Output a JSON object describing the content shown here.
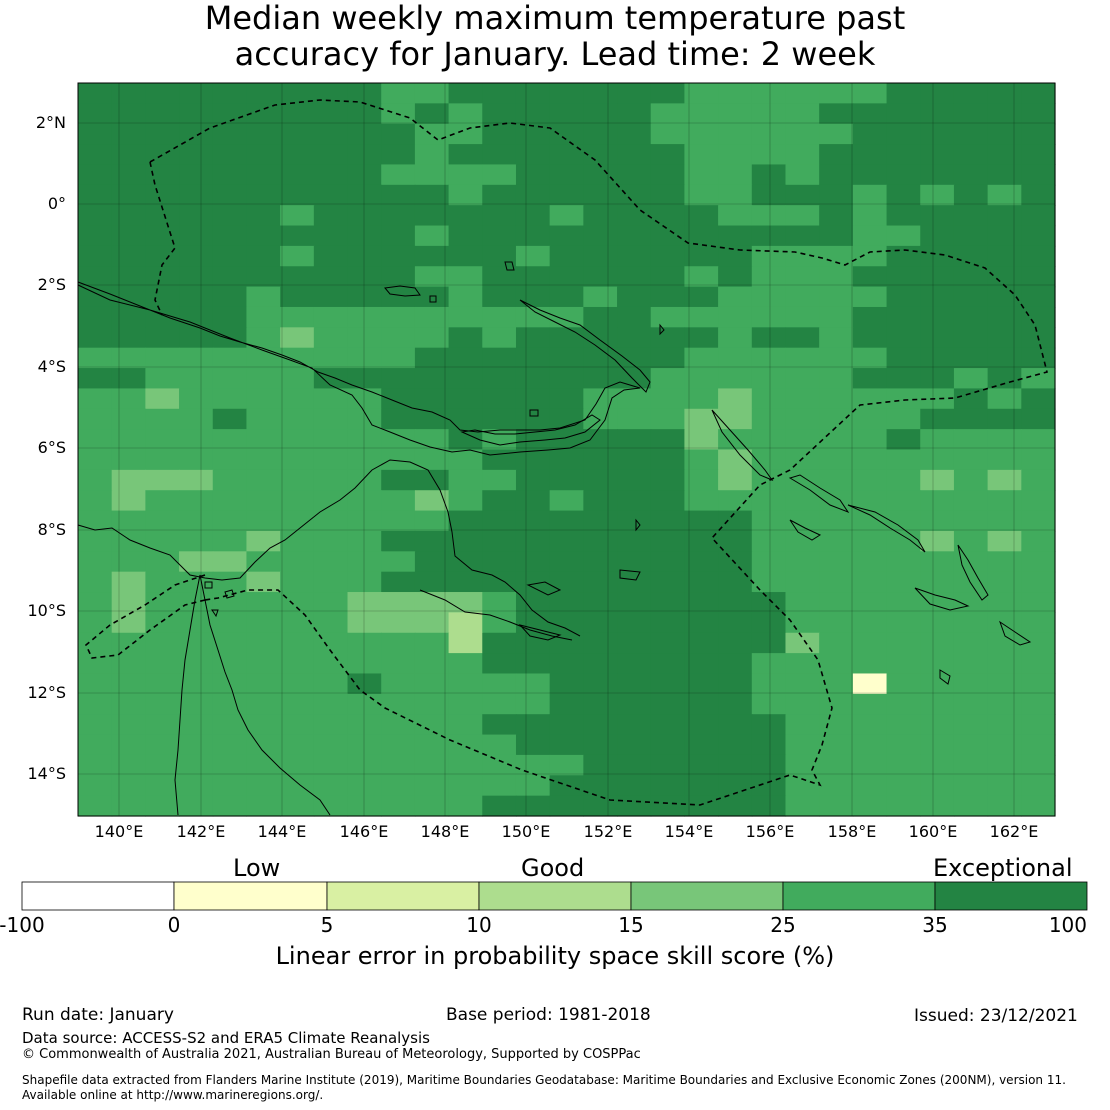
{
  "title": {
    "line1": "Median weekly maximum temperature past",
    "line2": "accuracy for January. Lead time: 2 week"
  },
  "map": {
    "lat_labels": [
      "2°N",
      "0°",
      "2°S",
      "4°S",
      "6°S",
      "8°S",
      "10°S",
      "12°S",
      "14°S"
    ],
    "lon_labels": [
      "140°E",
      "142°E",
      "144°E",
      "146°E",
      "148°E",
      "150°E",
      "152°E",
      "154°E",
      "156°E",
      "158°E",
      "160°E",
      "162°E"
    ],
    "colors": {
      "c0": "#ffffcc",
      "c5": "#d9f0a3",
      "c10": "#addd8e",
      "c15": "#78c679",
      "c25": "#41ab5d",
      "c35": "#238443"
    }
  },
  "legend": {
    "categories": [
      "Low",
      "Good",
      "Exceptional"
    ],
    "ticks": [
      "-100",
      "0",
      "5",
      "10",
      "15",
      "25",
      "35",
      "100"
    ],
    "colors": [
      "#ffffff",
      "#ffffcc",
      "#d9f0a3",
      "#addd8e",
      "#78c679",
      "#41ab5d",
      "#238443"
    ],
    "axis_label": "Linear error in probability space skill score (%)"
  },
  "footer": {
    "run_date": "Run date: January",
    "base_period": "Base period: 1981-2018",
    "issued": "Issued: 23/12/2021",
    "data_source": "Data source: ACCESS-S2 and ERA5 Climate Reanalysis",
    "copyright": "© Commonwealth of Australia 2021, Australian Bureau of Meteorology, Supported by COSPPac",
    "shapefile_line1": "Shapefile data extracted from Flanders Marine Institute (2019), Maritime Boundaries Geodatabase: Maritime Boundaries and Exclusive Economic Zones (200NM), version 11.",
    "shapefile_line2": "Available online at http://www.marineregions.org/."
  }
}
